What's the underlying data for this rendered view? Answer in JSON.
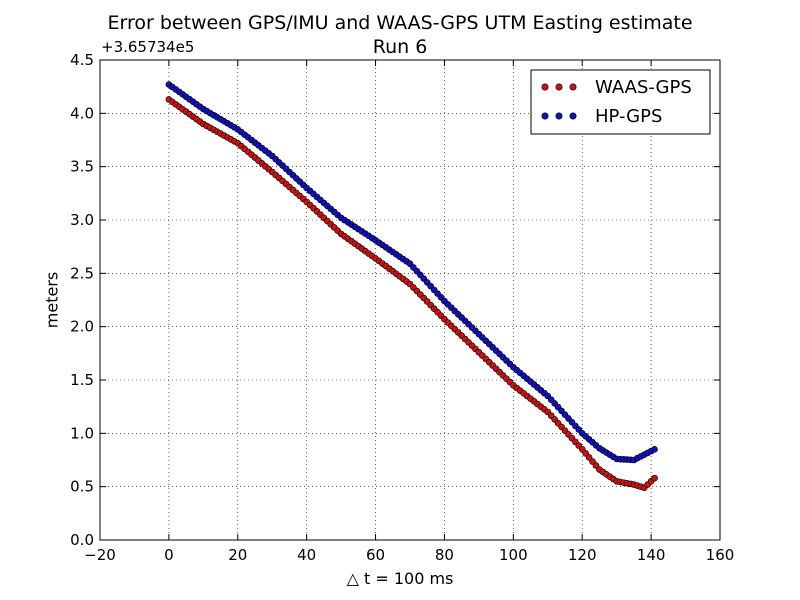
{
  "chart_data": {
    "type": "scatter",
    "title": "Error between GPS/IMU and WAAS-GPS UTM Easting estimate",
    "subtitle": "Run 6",
    "xlabel": "△ t = 100 ms",
    "ylabel": "meters",
    "y_offset_label": "+3.65734e5",
    "xlim": [
      -20,
      160
    ],
    "ylim": [
      0.0,
      4.5
    ],
    "xticks": [
      -20,
      0,
      20,
      40,
      60,
      80,
      100,
      120,
      140,
      160
    ],
    "xtick_labels": [
      "−20",
      "0",
      "20",
      "40",
      "60",
      "80",
      "100",
      "120",
      "140",
      "160"
    ],
    "yticks": [
      0.0,
      0.5,
      1.0,
      1.5,
      2.0,
      2.5,
      3.0,
      3.5,
      4.0,
      4.5
    ],
    "ytick_labels": [
      "0.0",
      "0.5",
      "1.0",
      "1.5",
      "2.0",
      "2.5",
      "3.0",
      "3.5",
      "4.0",
      "4.5"
    ],
    "grid": true,
    "legend": "top-right",
    "series": [
      {
        "name": "WAAS-GPS",
        "color": "#cc1111",
        "x": [
          0,
          10,
          20,
          30,
          40,
          50,
          60,
          70,
          80,
          90,
          100,
          110,
          120,
          125,
          130,
          135,
          138,
          141
        ],
        "y": [
          4.13,
          3.9,
          3.72,
          3.45,
          3.17,
          2.87,
          2.64,
          2.4,
          2.07,
          1.76,
          1.45,
          1.2,
          0.85,
          0.66,
          0.55,
          0.52,
          0.49,
          0.58
        ]
      },
      {
        "name": "HP-GPS",
        "color": "#1111bb",
        "x": [
          0,
          10,
          20,
          30,
          40,
          50,
          60,
          70,
          80,
          90,
          100,
          110,
          120,
          125,
          130,
          135,
          138,
          141
        ],
        "y": [
          4.27,
          4.04,
          3.85,
          3.6,
          3.3,
          3.02,
          2.81,
          2.59,
          2.24,
          1.93,
          1.62,
          1.35,
          1.0,
          0.86,
          0.76,
          0.75,
          0.8,
          0.85
        ]
      }
    ]
  }
}
